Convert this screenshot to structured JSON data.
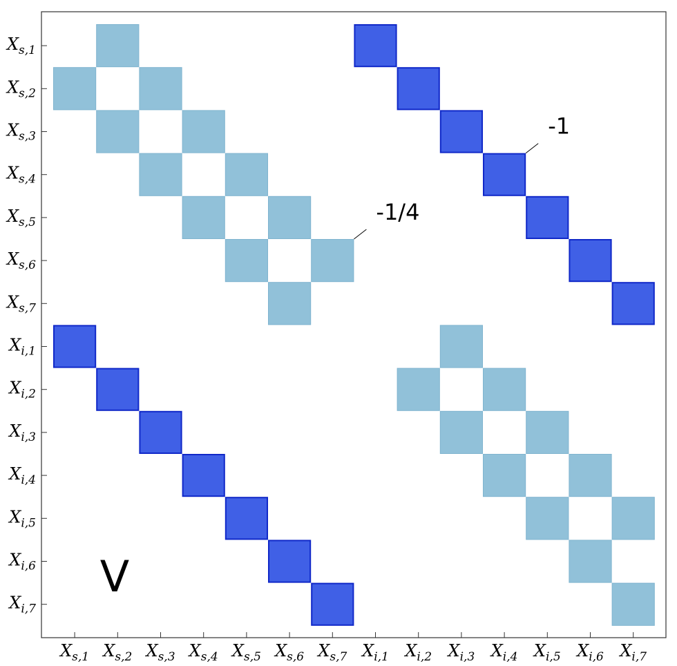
{
  "chart_data": {
    "type": "heatmap",
    "title": "",
    "panel_label": "V",
    "annotations": [
      {
        "text": "-1/4",
        "row": 6,
        "col": 7
      },
      {
        "text": "-1",
        "row": 4,
        "col": 11
      }
    ],
    "rows": [
      {
        "base": "X",
        "sub": "s,1"
      },
      {
        "base": "X",
        "sub": "s,2"
      },
      {
        "base": "X",
        "sub": "s,3"
      },
      {
        "base": "X",
        "sub": "s,4"
      },
      {
        "base": "X",
        "sub": "s,5"
      },
      {
        "base": "X",
        "sub": "s,6"
      },
      {
        "base": "X",
        "sub": "s,7"
      },
      {
        "base": "X",
        "sub": "i,1"
      },
      {
        "base": "X",
        "sub": "i,2"
      },
      {
        "base": "X",
        "sub": "i,3"
      },
      {
        "base": "X",
        "sub": "i,4"
      },
      {
        "base": "X",
        "sub": "i,5"
      },
      {
        "base": "X",
        "sub": "i,6"
      },
      {
        "base": "X",
        "sub": "i,7"
      }
    ],
    "columns": [
      {
        "base": "X",
        "sub": "s,1"
      },
      {
        "base": "X",
        "sub": "s,2"
      },
      {
        "base": "X",
        "sub": "s,3"
      },
      {
        "base": "X",
        "sub": "s,4"
      },
      {
        "base": "X",
        "sub": "s,5"
      },
      {
        "base": "X",
        "sub": "s,6"
      },
      {
        "base": "X",
        "sub": "s,7"
      },
      {
        "base": "X",
        "sub": "i,1"
      },
      {
        "base": "X",
        "sub": "i,2"
      },
      {
        "base": "X",
        "sub": "i,3"
      },
      {
        "base": "X",
        "sub": "i,4"
      },
      {
        "base": "X",
        "sub": "i,5"
      },
      {
        "base": "X",
        "sub": "i,6"
      },
      {
        "base": "X",
        "sub": "i,7"
      }
    ],
    "levels": [
      {
        "value": -0.25,
        "fill": "#91c1d9",
        "stroke": "#7fb4cf"
      },
      {
        "value": -1,
        "fill": "#4060e6",
        "stroke": "#1028c8"
      }
    ],
    "cells": [
      {
        "row": 1,
        "col": 2,
        "value": -0.25
      },
      {
        "row": 1,
        "col": 8,
        "value": -1
      },
      {
        "row": 2,
        "col": 1,
        "value": -0.25
      },
      {
        "row": 2,
        "col": 3,
        "value": -0.25
      },
      {
        "row": 2,
        "col": 9,
        "value": -1
      },
      {
        "row": 3,
        "col": 2,
        "value": -0.25
      },
      {
        "row": 3,
        "col": 4,
        "value": -0.25
      },
      {
        "row": 3,
        "col": 10,
        "value": -1
      },
      {
        "row": 4,
        "col": 3,
        "value": -0.25
      },
      {
        "row": 4,
        "col": 5,
        "value": -0.25
      },
      {
        "row": 4,
        "col": 11,
        "value": -1
      },
      {
        "row": 5,
        "col": 4,
        "value": -0.25
      },
      {
        "row": 5,
        "col": 6,
        "value": -0.25
      },
      {
        "row": 5,
        "col": 12,
        "value": -1
      },
      {
        "row": 6,
        "col": 5,
        "value": -0.25
      },
      {
        "row": 6,
        "col": 7,
        "value": -0.25
      },
      {
        "row": 6,
        "col": 13,
        "value": -1
      },
      {
        "row": 7,
        "col": 6,
        "value": -0.25
      },
      {
        "row": 7,
        "col": 14,
        "value": -1
      },
      {
        "row": 8,
        "col": 1,
        "value": -1
      },
      {
        "row": 8,
        "col": 10,
        "value": -0.25
      },
      {
        "row": 9,
        "col": 2,
        "value": -1
      },
      {
        "row": 9,
        "col": 9,
        "value": -0.25
      },
      {
        "row": 9,
        "col": 11,
        "value": -0.25
      },
      {
        "row": 10,
        "col": 3,
        "value": -1
      },
      {
        "row": 10,
        "col": 10,
        "value": -0.25
      },
      {
        "row": 10,
        "col": 12,
        "value": -0.25
      },
      {
        "row": 11,
        "col": 4,
        "value": -1
      },
      {
        "row": 11,
        "col": 11,
        "value": -0.25
      },
      {
        "row": 11,
        "col": 13,
        "value": -0.25
      },
      {
        "row": 12,
        "col": 5,
        "value": -1
      },
      {
        "row": 12,
        "col": 12,
        "value": -0.25
      },
      {
        "row": 12,
        "col": 14,
        "value": -0.25
      },
      {
        "row": 13,
        "col": 6,
        "value": -1
      },
      {
        "row": 13,
        "col": 13,
        "value": -0.25
      },
      {
        "row": 14,
        "col": 7,
        "value": -1
      },
      {
        "row": 14,
        "col": 14,
        "value": -0.25
      }
    ]
  }
}
